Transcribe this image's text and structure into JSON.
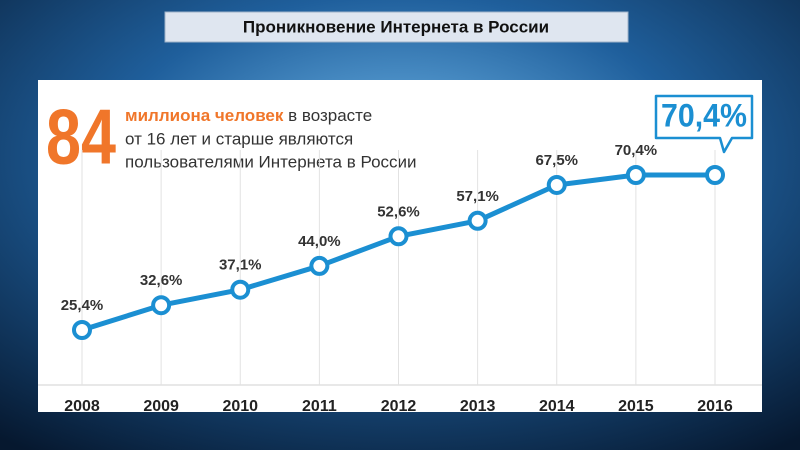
{
  "chart_data": {
    "type": "line",
    "title": "Проникновение Интернета в России",
    "headline": {
      "number": "84",
      "highlight": "миллиона человек",
      "text": [
        "в возрасте",
        "от 16 лет и старше являются",
        "пользователями Интернета в России"
      ]
    },
    "categories": [
      "2008",
      "2009",
      "2010",
      "2011",
      "2012",
      "2013",
      "2014",
      "2015",
      "2016"
    ],
    "values": [
      25.4,
      32.6,
      37.1,
      44.0,
      52.6,
      57.1,
      67.5,
      70.4,
      70.4
    ],
    "value_labels": [
      "25,4%",
      "32,6%",
      "37,1%",
      "44,0%",
      "52,6%",
      "57,1%",
      "67,5%",
      "70,4%",
      "70,4%"
    ],
    "color": "#1b8fd2",
    "highlight_color": "#f0762a",
    "grid": true
  }
}
